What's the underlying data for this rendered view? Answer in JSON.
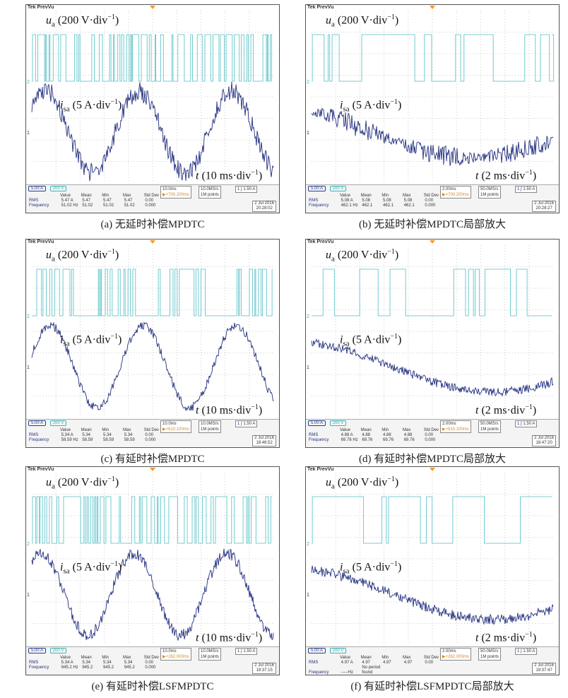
{
  "brand": "Tek PrevVu",
  "labels": {
    "ua_sym": "u",
    "ua_sub": "a",
    "ua_unit": " (200 V·div",
    "isa_sym": "i",
    "isa_sub": "sa",
    "isa_unit": " (5 A·div",
    "t_sym": "t",
    "t10": " (10 ms·div",
    "t2": " (2 ms·div",
    "sup": "−1",
    "close": ")"
  },
  "meas_headers": [
    "Value",
    "Mean",
    "Min",
    "Max",
    "Std Dev"
  ],
  "meas_names": [
    "RMS",
    "Frequency"
  ],
  "colors": {
    "voltage": "#4fbfc4",
    "current": "#24307f"
  },
  "panels": [
    {
      "id": "a",
      "caption": "(a) 无延时补偿MPDTC",
      "time_label": "t10",
      "ch1": "5.00 A",
      "ch2": "200 V",
      "tb": "10.0ms",
      "trig": "▶+700.200ms",
      "sr": "10.0MS/s",
      "pts": "1M points",
      "trig2": "1.50 A",
      "rms": [
        "5.47 A",
        "5.47",
        "5.47",
        "5.47",
        "0.00"
      ],
      "freq": [
        "51.02 Hz",
        "51.02",
        "51.02",
        "51.02",
        "0.000"
      ],
      "date": "2 Jul 2016",
      "time": "20:28:02"
    },
    {
      "id": "b",
      "caption": "(b) 无延时补偿MPDTC局部放大",
      "time_label": "t2",
      "ch1": "5.00 A",
      "ch2": "200 V",
      "tb": "2.00ms",
      "trig": "▶+700.200ms",
      "sr": "50.0MS/s",
      "pts": "1M points",
      "trig2": "1.50 A",
      "rms": [
        "5.08 A",
        "5.08",
        "5.08",
        "5.08",
        "0.00"
      ],
      "freq": [
        "462.1 Hz",
        "462.1",
        "462.1",
        "462.1",
        "0.000"
      ],
      "date": "2 Jul 2016",
      "time": "20:28:27"
    },
    {
      "id": "c",
      "caption": "(c) 有延时补偿MPDTC",
      "time_label": "t10",
      "ch1": "5.00 A",
      "ch2": "200 V",
      "tb": "10.0ms",
      "trig": "▶+610.100ms",
      "sr": "10.0MS/s",
      "pts": "1M points",
      "trig2": "1.50 A",
      "rms": [
        "5.34 A",
        "5.34",
        "5.34",
        "5.34",
        "0.00"
      ],
      "freq": [
        "58.59 Hz",
        "58.59",
        "58.59",
        "58.59",
        "0.000"
      ],
      "date": "2 Jul 2016",
      "time": "18:46:52"
    },
    {
      "id": "d",
      "caption": "(d) 有延时补偿MPDTC局部放大",
      "time_label": "t2",
      "ch1": "5.00 A",
      "ch2": "200 V",
      "tb": "2.00ms",
      "trig": "▶+610.100ms",
      "sr": "50.0MS/s",
      "pts": "1M points",
      "trig2": "1.50 A",
      "rms": [
        "4.88 A",
        "4.88",
        "4.88",
        "4.88",
        "0.00"
      ],
      "freq": [
        "69.76 Hz",
        "69.76",
        "69.76",
        "69.76",
        "0.000"
      ],
      "date": "2 Jul 2016",
      "time": "18:47:20"
    },
    {
      "id": "e",
      "caption": "(e) 有延时补偿LSFMPDTC",
      "time_label": "t10",
      "ch1": "5.00 A",
      "ch2": "200 V",
      "tb": "10.0ms",
      "trig": "▶+262.000ms",
      "sr": "10.0MS/s",
      "pts": "1M points",
      "trig2": "1.50 A",
      "rms": [
        "5.34 A",
        "5.34",
        "5.34",
        "5.34",
        "0.00"
      ],
      "freq": [
        "945.2 Hz",
        "945.2",
        "945.2",
        "945.2",
        "0.000"
      ],
      "date": "2 Jul 2016",
      "time": "19:37:15"
    },
    {
      "id": "f",
      "caption": "(f) 有延时补偿LSFMPDTC局部放大",
      "time_label": "t2",
      "ch1": "5.00 A",
      "ch2": "200 V",
      "tb": "2.00ms",
      "trig": "▶+262.000ms",
      "sr": "50.0MS/s",
      "pts": "1M points",
      "trig2": "1.50 A",
      "rms": [
        "4.97 A",
        "4.97",
        "4.97",
        "4.97",
        "0.00"
      ],
      "freq": [
        "-----Hz",
        "No period found",
        "",
        "",
        ""
      ],
      "date": "2 Jul 2016",
      "time": "19:37:47"
    }
  ],
  "chart_data": [
    {
      "type": "line",
      "title": "(a) 无延时补偿MPDTC",
      "series": [
        {
          "name": "ua (200 V·div−1)"
        },
        {
          "name": "isa (5 A·div−1)"
        }
      ],
      "xlabel": "t (10 ms·div−1)"
    },
    {
      "type": "line",
      "title": "(b) 无延时补偿MPDTC局部放大",
      "series": [
        {
          "name": "ua (200 V·div−1)"
        },
        {
          "name": "isa (5 A·div−1)"
        }
      ],
      "xlabel": "t (2 ms·div−1)"
    },
    {
      "type": "line",
      "title": "(c) 有延时补偿MPDTC",
      "series": [
        {
          "name": "ua (200 V·div−1)"
        },
        {
          "name": "isa (5 A·div−1)"
        }
      ],
      "xlabel": "t (10 ms·div−1)"
    },
    {
      "type": "line",
      "title": "(d) 有延时补偿MPDTC局部放大",
      "series": [
        {
          "name": "ua (200 V·div−1)"
        },
        {
          "name": "isa (5 A·div−1)"
        }
      ],
      "xlabel": "t (2 ms·div−1)"
    },
    {
      "type": "line",
      "title": "(e) 有延时补偿LSFMPDTC",
      "series": [
        {
          "name": "ua (200 V·div−1)"
        },
        {
          "name": "isa (5 A·div−1)"
        }
      ],
      "xlabel": "t (10 ms·div−1)"
    },
    {
      "type": "line",
      "title": "(f) 有延时补偿LSFMPDTC局部放大",
      "series": [
        {
          "name": "ua (200 V·div−1)"
        },
        {
          "name": "isa (5 A·div−1)"
        }
      ],
      "xlabel": "t (2 ms·div−1)"
    }
  ]
}
